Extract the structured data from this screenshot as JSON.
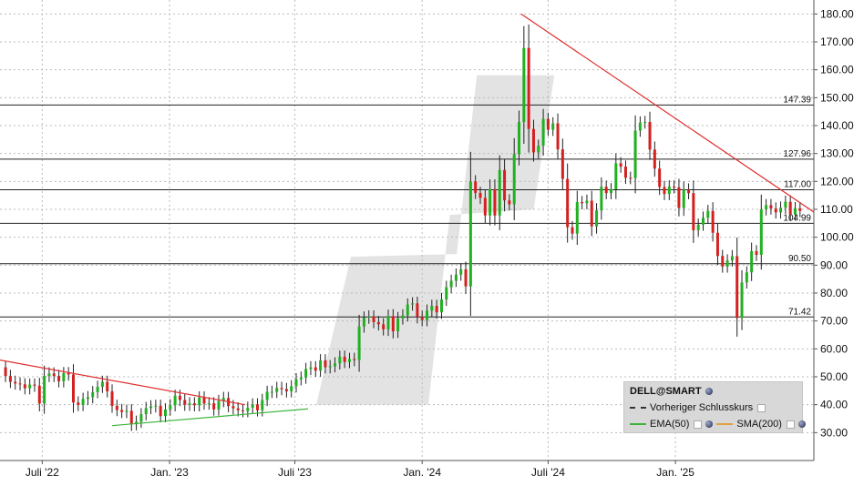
{
  "chart_data": {
    "type": "candlestick",
    "symbol": "DELL@SMART",
    "y_range": [
      20,
      185
    ],
    "y_ticks": [
      30,
      40,
      50,
      60,
      70,
      80,
      90,
      100,
      110,
      120,
      130,
      140,
      150,
      160,
      170,
      180
    ],
    "y_tick_labels": [
      "30.00",
      "40.00",
      "50.00",
      "60.00",
      "70.00",
      "80.00",
      "90.00",
      "100.00",
      "110.00",
      "120.00",
      "130.00",
      "140.00",
      "150.00",
      "160.00",
      "170.00",
      "180.00"
    ],
    "x_range": [
      "2022-05-01",
      "2025-07-20"
    ],
    "x_ticks": [
      "2022-07-01",
      "2023-01-01",
      "2023-07-01",
      "2024-01-01",
      "2024-07-01",
      "2025-01-01"
    ],
    "x_tick_labels": [
      "Juli '22",
      "Jan. '23",
      "Juli '23",
      "Jan. '24",
      "Juli '24",
      "Jan. '25"
    ],
    "grid": true,
    "horizontal_levels": [
      {
        "value": 147.39,
        "label": "147.39"
      },
      {
        "value": 127.96,
        "label": "127.96"
      },
      {
        "value": 117.0,
        "label": "117.00"
      },
      {
        "value": 104.99,
        "label": "104.99"
      },
      {
        "value": 90.5,
        "label": "90.50"
      },
      {
        "value": 71.42,
        "label": "71.42"
      }
    ],
    "trendlines": [
      {
        "color": "#e03030",
        "from": [
          "2022-05-01",
          56
        ],
        "to": [
          "2023-04-20",
          40
        ]
      },
      {
        "color": "#e03030",
        "from": [
          "2024-05-23",
          180
        ],
        "to": [
          "2025-07-20",
          109
        ]
      },
      {
        "color": "#3cb43c",
        "from": [
          "2022-10-10",
          32.5
        ],
        "to": [
          "2023-07-20",
          38.5
        ]
      }
    ],
    "channel_band": {
      "color": "#d9d9d9",
      "polygon": [
        [
          "2023-08-01",
          40
        ],
        [
          "2023-09-20",
          93
        ],
        [
          "2024-02-20",
          94
        ],
        [
          "2024-03-20",
          158
        ],
        [
          "2024-07-10",
          158
        ],
        [
          "2024-06-10",
          110
        ],
        [
          "2024-02-10",
          108
        ],
        [
          "2024-01-10",
          40
        ]
      ]
    },
    "legend": {
      "title": "DELL@SMART",
      "items": [
        "Vorheriger Schlusskurs",
        "EMA(50)",
        "SMA(200)"
      ],
      "position": "bottom-right"
    },
    "weekly_closes": [
      [
        "2022-05-02",
        53.4
      ],
      [
        "2022-05-09",
        50.3
      ],
      [
        "2022-05-16",
        48.2
      ],
      [
        "2022-05-23",
        47.6
      ],
      [
        "2022-05-30",
        47.3
      ],
      [
        "2022-06-06",
        45.9
      ],
      [
        "2022-06-13",
        47.2
      ],
      [
        "2022-06-20",
        46.8
      ],
      [
        "2022-06-27",
        40.4
      ],
      [
        "2022-07-04",
        50.3
      ],
      [
        "2022-07-11",
        51.2
      ],
      [
        "2022-07-18",
        50.3
      ],
      [
        "2022-07-25",
        48.4
      ],
      [
        "2022-08-01",
        51.3
      ],
      [
        "2022-08-08",
        50.8
      ],
      [
        "2022-08-15",
        40.8
      ],
      [
        "2022-08-22",
        39.9
      ],
      [
        "2022-08-29",
        42.1
      ],
      [
        "2022-09-05",
        42.7
      ],
      [
        "2022-09-12",
        44.5
      ],
      [
        "2022-09-19",
        46.4
      ],
      [
        "2022-09-26",
        48.2
      ],
      [
        "2022-10-03",
        44.8
      ],
      [
        "2022-10-10",
        39.6
      ],
      [
        "2022-10-17",
        38.1
      ],
      [
        "2022-10-24",
        37.4
      ],
      [
        "2022-10-31",
        37.8
      ],
      [
        "2022-11-07",
        33.0
      ],
      [
        "2022-11-14",
        33.9
      ],
      [
        "2022-11-21",
        36.6
      ],
      [
        "2022-11-28",
        38.8
      ],
      [
        "2022-12-05",
        39.4
      ],
      [
        "2022-12-12",
        39.6
      ],
      [
        "2022-12-19",
        35.9
      ],
      [
        "2022-12-26",
        38.3
      ],
      [
        "2023-01-02",
        39.8
      ],
      [
        "2023-01-09",
        43.2
      ],
      [
        "2023-01-16",
        41.7
      ],
      [
        "2023-01-23",
        40.0
      ],
      [
        "2023-01-30",
        40.5
      ],
      [
        "2023-02-06",
        39.8
      ],
      [
        "2023-02-13",
        42.6
      ],
      [
        "2023-02-20",
        40.4
      ],
      [
        "2023-02-27",
        40.5
      ],
      [
        "2023-03-06",
        38.3
      ],
      [
        "2023-03-13",
        41.3
      ],
      [
        "2023-03-20",
        42.4
      ],
      [
        "2023-03-27",
        39.5
      ],
      [
        "2023-04-03",
        38.7
      ],
      [
        "2023-04-10",
        38.0
      ],
      [
        "2023-04-17",
        37.7
      ],
      [
        "2023-04-24",
        38.9
      ],
      [
        "2023-05-01",
        40.1
      ],
      [
        "2023-05-08",
        38.0
      ],
      [
        "2023-05-15",
        41.7
      ],
      [
        "2023-05-22",
        44.6
      ],
      [
        "2023-05-29",
        44.6
      ],
      [
        "2023-06-05",
        46.0
      ],
      [
        "2023-06-12",
        45.6
      ],
      [
        "2023-06-19",
        44.8
      ],
      [
        "2023-06-26",
        46.6
      ],
      [
        "2023-07-03",
        49.1
      ],
      [
        "2023-07-10",
        49.7
      ],
      [
        "2023-07-17",
        52.8
      ],
      [
        "2023-07-24",
        53.4
      ],
      [
        "2023-07-31",
        52.2
      ],
      [
        "2023-08-07",
        55.9
      ],
      [
        "2023-08-14",
        53.4
      ],
      [
        "2023-08-21",
        53.8
      ],
      [
        "2023-08-28",
        54.8
      ],
      [
        "2023-09-04",
        57.2
      ],
      [
        "2023-09-11",
        55.3
      ],
      [
        "2023-09-18",
        56.4
      ],
      [
        "2023-09-25",
        56.0
      ],
      [
        "2023-10-02",
        68.0
      ],
      [
        "2023-10-09",
        71.2
      ],
      [
        "2023-10-16",
        71.6
      ],
      [
        "2023-10-23",
        69.6
      ],
      [
        "2023-10-30",
        68.8
      ],
      [
        "2023-11-06",
        67.0
      ],
      [
        "2023-11-13",
        71.7
      ],
      [
        "2023-11-20",
        66.3
      ],
      [
        "2023-11-27",
        70.9
      ],
      [
        "2023-12-04",
        72.0
      ],
      [
        "2023-12-11",
        75.9
      ],
      [
        "2023-12-18",
        76.3
      ],
      [
        "2023-12-25",
        71.5
      ],
      [
        "2024-01-01",
        70.3
      ],
      [
        "2024-01-08",
        73.7
      ],
      [
        "2024-01-15",
        75.4
      ],
      [
        "2024-01-22",
        73.1
      ],
      [
        "2024-01-29",
        77.7
      ],
      [
        "2024-02-05",
        82.1
      ],
      [
        "2024-02-12",
        84.4
      ],
      [
        "2024-02-19",
        86.6
      ],
      [
        "2024-02-26",
        88.5
      ],
      [
        "2024-03-04",
        82.4
      ],
      [
        "2024-03-11",
        120.0
      ],
      [
        "2024-03-18",
        115.9
      ],
      [
        "2024-03-25",
        114.1
      ],
      [
        "2024-04-01",
        107.8
      ],
      [
        "2024-04-08",
        117.2
      ],
      [
        "2024-04-15",
        107.8
      ],
      [
        "2024-04-22",
        124.1
      ],
      [
        "2024-04-29",
        113.2
      ],
      [
        "2024-05-06",
        111.8
      ],
      [
        "2024-05-13",
        129.8
      ],
      [
        "2024-05-20",
        141.3
      ],
      [
        "2024-05-27",
        167.8
      ],
      [
        "2024-06-03",
        138.8
      ],
      [
        "2024-06-10",
        130.4
      ],
      [
        "2024-06-17",
        132.8
      ],
      [
        "2024-06-24",
        142.4
      ],
      [
        "2024-07-01",
        138.5
      ],
      [
        "2024-07-08",
        140.8
      ],
      [
        "2024-07-15",
        131.5
      ],
      [
        "2024-07-22",
        120.9
      ],
      [
        "2024-07-29",
        103.6
      ],
      [
        "2024-08-05",
        101.3
      ],
      [
        "2024-08-12",
        112.6
      ],
      [
        "2024-08-19",
        112.2
      ],
      [
        "2024-08-26",
        113.1
      ],
      [
        "2024-09-02",
        103.9
      ],
      [
        "2024-09-09",
        109.6
      ],
      [
        "2024-09-16",
        118.1
      ],
      [
        "2024-09-23",
        115.8
      ],
      [
        "2024-09-30",
        117.2
      ],
      [
        "2024-10-07",
        126.5
      ],
      [
        "2024-10-14",
        125.3
      ],
      [
        "2024-10-21",
        121.3
      ],
      [
        "2024-10-28",
        121.2
      ],
      [
        "2024-11-04",
        138.2
      ],
      [
        "2024-11-11",
        141.1
      ],
      [
        "2024-11-18",
        141.3
      ],
      [
        "2024-11-25",
        131.4
      ],
      [
        "2024-12-02",
        124.6
      ],
      [
        "2024-12-09",
        118.0
      ],
      [
        "2024-12-16",
        115.5
      ],
      [
        "2024-12-23",
        118.2
      ],
      [
        "2024-12-30",
        117.9
      ],
      [
        "2025-01-06",
        110.5
      ],
      [
        "2025-01-13",
        117.1
      ],
      [
        "2025-01-20",
        115.8
      ],
      [
        "2025-01-27",
        102.5
      ],
      [
        "2025-02-03",
        104.5
      ],
      [
        "2025-02-10",
        107.0
      ],
      [
        "2025-02-17",
        109.4
      ],
      [
        "2025-02-24",
        101.6
      ],
      [
        "2025-03-03",
        93.3
      ],
      [
        "2025-03-10",
        89.5
      ],
      [
        "2025-03-17",
        91.7
      ],
      [
        "2025-03-24",
        93.2
      ],
      [
        "2025-03-31",
        71.1
      ],
      [
        "2025-04-07",
        83.8
      ],
      [
        "2025-04-14",
        87.4
      ],
      [
        "2025-04-21",
        95.0
      ],
      [
        "2025-04-28",
        93.7
      ],
      [
        "2025-05-05",
        110.0
      ],
      [
        "2025-05-12",
        111.5
      ],
      [
        "2025-05-19",
        110.3
      ],
      [
        "2025-05-26",
        108.9
      ],
      [
        "2025-06-02",
        110.6
      ],
      [
        "2025-06-09",
        112.7
      ],
      [
        "2025-06-16",
        108.1
      ],
      [
        "2025-06-23",
        110.4
      ],
      [
        "2025-06-30",
        109.4
      ]
    ]
  }
}
